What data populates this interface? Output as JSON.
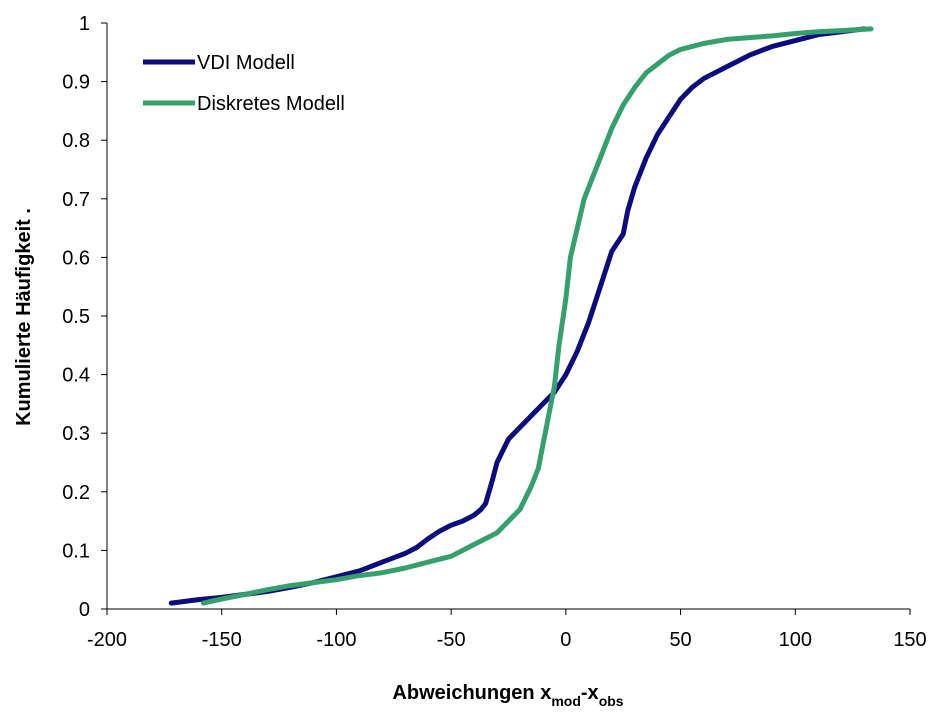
{
  "chart_data": {
    "type": "line",
    "title": "",
    "xlabel": {
      "main": "Abweichungen x",
      "sub1": "mod",
      "mid": "-x",
      "sub2": "obs"
    },
    "ylabel": "Kumulierte Häufigkeit .",
    "xlim": [
      -200,
      150
    ],
    "ylim": [
      0,
      1
    ],
    "xticks": [
      -200,
      -150,
      -100,
      -50,
      0,
      50,
      100,
      150
    ],
    "xtick_labels": [
      "-200",
      "-150",
      "-100",
      "-50",
      "0",
      "50",
      "100",
      "150"
    ],
    "yticks": [
      0,
      0.1,
      0.2,
      0.3,
      0.4,
      0.5,
      0.6,
      0.7,
      0.8,
      0.9,
      1
    ],
    "ytick_labels": [
      "0",
      "0.1",
      "0.2",
      "0.3",
      "0.4",
      "0.5",
      "0.6",
      "0.7",
      "0.8",
      "0.9",
      "1"
    ],
    "grid": false,
    "legend_position": "top-left",
    "series": [
      {
        "name": "VDI Modell",
        "color": "#0c0c7c",
        "x": [
          -172,
          -160,
          -150,
          -140,
          -130,
          -120,
          -110,
          -100,
          -90,
          -80,
          -70,
          -65,
          -60,
          -55,
          -50,
          -45,
          -40,
          -37,
          -35,
          -32,
          -30,
          -25,
          -20,
          -15,
          -10,
          -5,
          0,
          5,
          10,
          15,
          20,
          25,
          27,
          30,
          35,
          40,
          45,
          50,
          55,
          60,
          70,
          75,
          80,
          90,
          100,
          110,
          120,
          130
        ],
        "y": [
          0.01,
          0.016,
          0.02,
          0.025,
          0.03,
          0.037,
          0.045,
          0.055,
          0.065,
          0.08,
          0.095,
          0.105,
          0.12,
          0.133,
          0.143,
          0.15,
          0.16,
          0.17,
          0.18,
          0.22,
          0.25,
          0.29,
          0.31,
          0.33,
          0.35,
          0.37,
          0.4,
          0.44,
          0.49,
          0.55,
          0.61,
          0.64,
          0.68,
          0.72,
          0.77,
          0.81,
          0.84,
          0.87,
          0.89,
          0.905,
          0.925,
          0.935,
          0.945,
          0.96,
          0.97,
          0.98,
          0.985,
          0.99
        ]
      },
      {
        "name": "Diskretes Modell",
        "color": "#35a06e",
        "x": [
          -158,
          -150,
          -140,
          -130,
          -120,
          -110,
          -100,
          -90,
          -80,
          -70,
          -60,
          -50,
          -40,
          -30,
          -25,
          -20,
          -15,
          -12,
          -10,
          -8,
          -5,
          -3,
          0,
          2,
          5,
          8,
          10,
          15,
          20,
          25,
          30,
          35,
          40,
          45,
          50,
          60,
          70,
          80,
          90,
          100,
          110,
          120,
          133
        ],
        "y": [
          0.01,
          0.017,
          0.025,
          0.033,
          0.04,
          0.045,
          0.05,
          0.057,
          0.062,
          0.07,
          0.08,
          0.09,
          0.11,
          0.13,
          0.15,
          0.17,
          0.21,
          0.24,
          0.28,
          0.32,
          0.38,
          0.45,
          0.53,
          0.6,
          0.65,
          0.7,
          0.72,
          0.77,
          0.82,
          0.86,
          0.89,
          0.915,
          0.93,
          0.945,
          0.955,
          0.965,
          0.972,
          0.975,
          0.978,
          0.982,
          0.985,
          0.987,
          0.99
        ]
      }
    ]
  }
}
